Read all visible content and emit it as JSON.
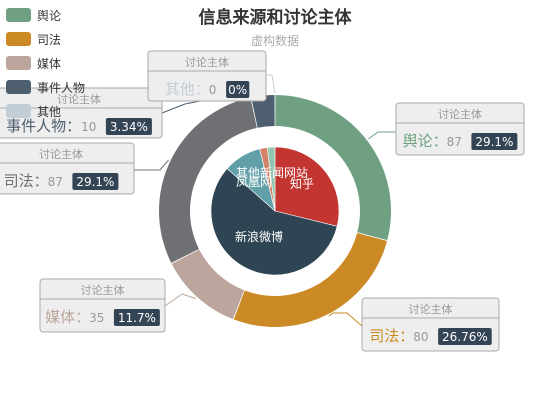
{
  "chart_data": {
    "type": "pie",
    "title": "信息来源和讨论主体",
    "subtitle": "虚构数据",
    "legend_position": "top-left",
    "inner_series": {
      "slices": [
        {
          "name": "知乎",
          "value": 30,
          "color": "#c23531"
        },
        {
          "name": "新浪微博",
          "value": 60,
          "color": "#2f4554"
        },
        {
          "name": "凤凰网",
          "value": 10,
          "color": "#61a0a8"
        },
        {
          "name": "其他新闻网站",
          "value": 2,
          "color": "#d48265"
        },
        {
          "name": "",
          "value": 2,
          "color": "#91c7ae"
        }
      ]
    },
    "outer_series": {
      "tooltip_heading": "讨论主体",
      "slices": [
        {
          "name": "舆论",
          "value": 87,
          "percent": "29.1%",
          "color": "#6fa082"
        },
        {
          "name": "司法",
          "value": 80,
          "percent": "26.76%",
          "color": "#cb8a26"
        },
        {
          "name": "媒体",
          "value": 35,
          "percent": "11.7%",
          "color": "#bba59c"
        },
        {
          "name": "司法",
          "value": 87,
          "percent": "29.1%",
          "color": "#6e7074"
        },
        {
          "name": "事件人物",
          "value": 10,
          "percent": "3.34%",
          "color": "#4e5f70"
        },
        {
          "name": "其他",
          "value": 0,
          "percent": "0%",
          "color": "#c2cdd6"
        }
      ]
    },
    "legend": [
      {
        "name": "舆论",
        "color": "#6fa082"
      },
      {
        "name": "司法",
        "color": "#cb8a26"
      },
      {
        "name": "媒体",
        "color": "#bba59c"
      },
      {
        "name": "事件人物",
        "color": "#4e5f70"
      },
      {
        "name": "其他",
        "color": "#c2cdd6"
      }
    ]
  }
}
